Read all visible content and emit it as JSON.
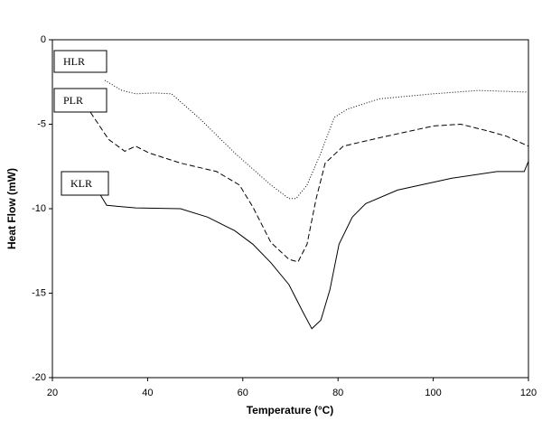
{
  "chart_data": {
    "type": "line",
    "xlabel": "Temperature (°C)",
    "ylabel": "Heat Flow (mW)",
    "xlim": [
      20,
      120
    ],
    "xticks": [
      20,
      40,
      60,
      80,
      100,
      120
    ],
    "ylim": [
      -20,
      0
    ],
    "yticks": [
      0,
      -5,
      -10,
      -15,
      -20
    ],
    "series": [
      {
        "name": "HLR",
        "color": "#000000",
        "linestyle": "dotted",
        "x": [
          31.0,
          34.6,
          37.5,
          41.3,
          45.0,
          50.7,
          58.3,
          65.9,
          69.7,
          71.2,
          73.5,
          76.4,
          79.2,
          82.0,
          88.7,
          100.1,
          109.6,
          120.0
        ],
        "values": [
          -2.4,
          -3.0,
          -3.2,
          -3.15,
          -3.2,
          -4.6,
          -6.7,
          -8.6,
          -9.4,
          -9.4,
          -8.6,
          -6.7,
          -4.6,
          -4.1,
          -3.5,
          -3.2,
          -3.0,
          -3.1
        ]
      },
      {
        "name": "PLR",
        "color": "#000000",
        "linestyle": "dashed",
        "x": [
          28.0,
          31.8,
          35.2,
          37.5,
          40.3,
          46.9,
          54.5,
          59.3,
          62.1,
          65.9,
          69.7,
          71.6,
          73.5,
          75.4,
          77.3,
          81.1,
          88.7,
          100.1,
          105.8,
          111.5,
          115.3,
          120.0
        ],
        "values": [
          -4.3,
          -5.9,
          -6.6,
          -6.3,
          -6.7,
          -7.3,
          -7.8,
          -8.6,
          -9.9,
          -12.0,
          -13.0,
          -13.15,
          -12.1,
          -9.4,
          -7.3,
          -6.3,
          -5.8,
          -5.1,
          -5.0,
          -5.4,
          -5.7,
          -6.3
        ]
      },
      {
        "name": "KLR",
        "color": "#000000",
        "linestyle": "solid",
        "x": [
          29.9,
          31.4,
          37.5,
          46.9,
          52.6,
          58.3,
          62.1,
          65.9,
          69.7,
          72.6,
          74.5,
          76.4,
          78.3,
          80.2,
          83.0,
          85.8,
          92.5,
          103.9,
          113.4,
          119.1,
          120.0
        ],
        "values": [
          -9.1,
          -9.8,
          -9.95,
          -10.0,
          -10.5,
          -11.3,
          -12.1,
          -13.2,
          -14.5,
          -16.1,
          -17.1,
          -16.6,
          -14.8,
          -12.1,
          -10.5,
          -9.7,
          -8.9,
          -8.2,
          -7.8,
          -7.8,
          -7.2
        ]
      }
    ]
  }
}
